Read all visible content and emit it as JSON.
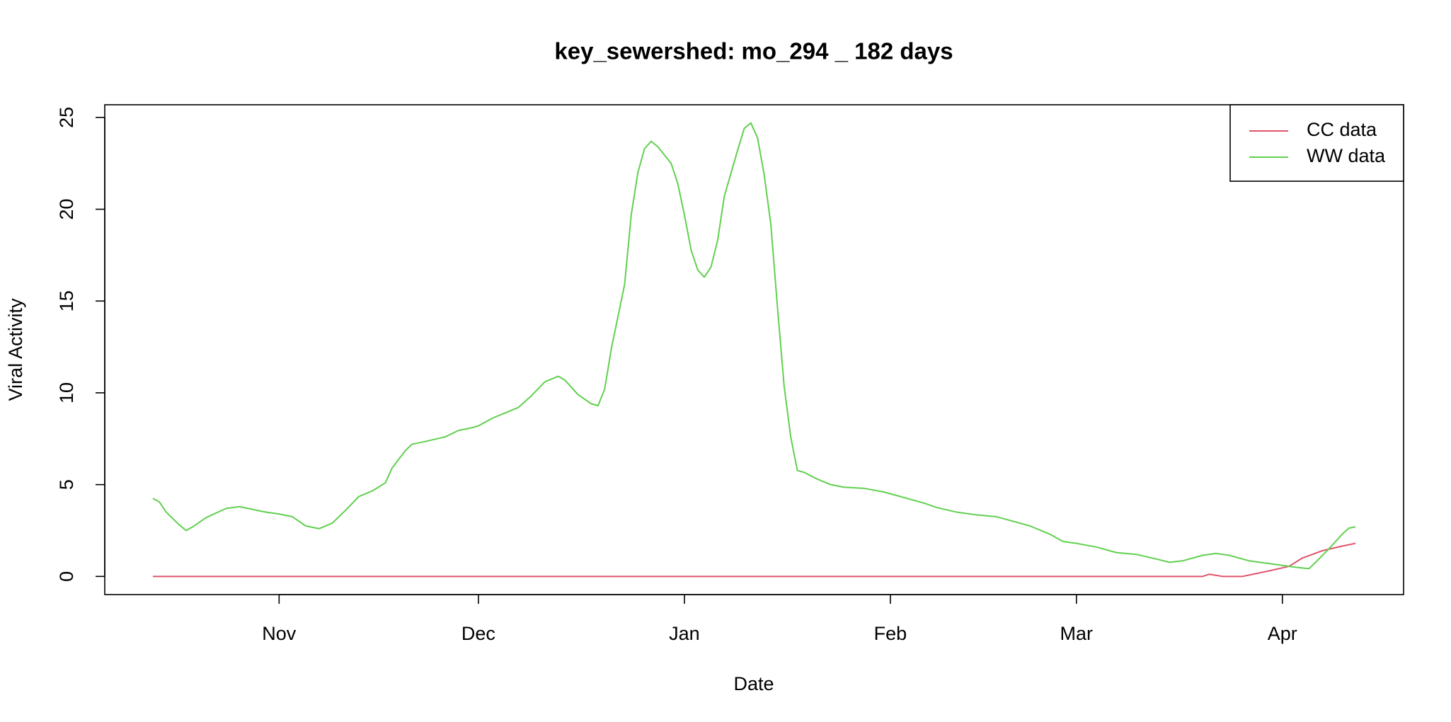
{
  "chart_data": {
    "type": "line",
    "title": "key_sewershed:  mo_294 _ 182  days",
    "x_label": "Date",
    "y_label": "Viral Activity",
    "xlim": [
      -7.24,
      188.24
    ],
    "ylim": [
      -0.99,
      25.69
    ],
    "xticks": [
      {
        "value": 19,
        "label": "Nov"
      },
      {
        "value": 49,
        "label": "Dec"
      },
      {
        "value": 80,
        "label": "Jan"
      },
      {
        "value": 111,
        "label": "Feb"
      },
      {
        "value": 139,
        "label": "Mar"
      },
      {
        "value": 170,
        "label": "Apr"
      }
    ],
    "yticks": [
      0,
      5,
      10,
      15,
      20,
      25
    ],
    "grid": false,
    "legend": "topright",
    "series": [
      {
        "name": "CC data",
        "color": "#df536b",
        "x": [
          0,
          158,
          159,
          161,
          164,
          168,
          171,
          173,
          176,
          179,
          181
        ],
        "values": [
          0,
          0,
          0.12,
          0,
          0,
          0.3,
          0.55,
          1.0,
          1.4,
          1.65,
          1.8
        ]
      },
      {
        "name": "WW data",
        "color": "#61d04f",
        "x": [
          0,
          1,
          2,
          4,
          5,
          6,
          8,
          11,
          13,
          15,
          17,
          19,
          21,
          23,
          25,
          27,
          29,
          31,
          33,
          35,
          36,
          38,
          39,
          41,
          44,
          46,
          48,
          49,
          51,
          53,
          55,
          57,
          59,
          61,
          62,
          64,
          66,
          67,
          68,
          69,
          71,
          72,
          73,
          74,
          75,
          76,
          78,
          79,
          80,
          81,
          82,
          83,
          84,
          85,
          86,
          88,
          89,
          90,
          91,
          92,
          93,
          94,
          95,
          96,
          97,
          98,
          100,
          102,
          104,
          107,
          110,
          113,
          116,
          118,
          121,
          124,
          127,
          130,
          132,
          135,
          137,
          139,
          142,
          145,
          148,
          151,
          153,
          155,
          158,
          160,
          162,
          165,
          168,
          170,
          172,
          174,
          175,
          177,
          179,
          180,
          181
        ],
        "values": [
          4.25,
          4.05,
          3.5,
          2.8,
          2.5,
          2.7,
          3.2,
          3.7,
          3.8,
          3.65,
          3.5,
          3.4,
          3.25,
          2.75,
          2.6,
          2.9,
          3.6,
          4.35,
          4.65,
          5.1,
          5.9,
          6.85,
          7.2,
          7.35,
          7.6,
          7.95,
          8.1,
          8.2,
          8.6,
          8.9,
          9.2,
          9.85,
          10.6,
          10.9,
          10.7,
          9.9,
          9.4,
          9.3,
          10.2,
          12.4,
          15.9,
          19.7,
          22,
          23.3,
          23.7,
          23.4,
          22.5,
          21.4,
          19.7,
          17.8,
          16.7,
          16.3,
          16.85,
          18.3,
          20.7,
          23.2,
          24.4,
          24.7,
          23.9,
          21.9,
          19.2,
          14.7,
          10.4,
          7.6,
          5.77,
          5.67,
          5.3,
          5.0,
          4.86,
          4.8,
          4.6,
          4.3,
          4.0,
          3.75,
          3.5,
          3.35,
          3.25,
          2.95,
          2.75,
          2.3,
          1.9,
          1.8,
          1.6,
          1.3,
          1.2,
          0.95,
          0.77,
          0.85,
          1.15,
          1.25,
          1.15,
          0.85,
          0.7,
          0.6,
          0.5,
          0.42,
          0.77,
          1.5,
          2.3,
          2.63,
          2.7
        ]
      }
    ]
  }
}
